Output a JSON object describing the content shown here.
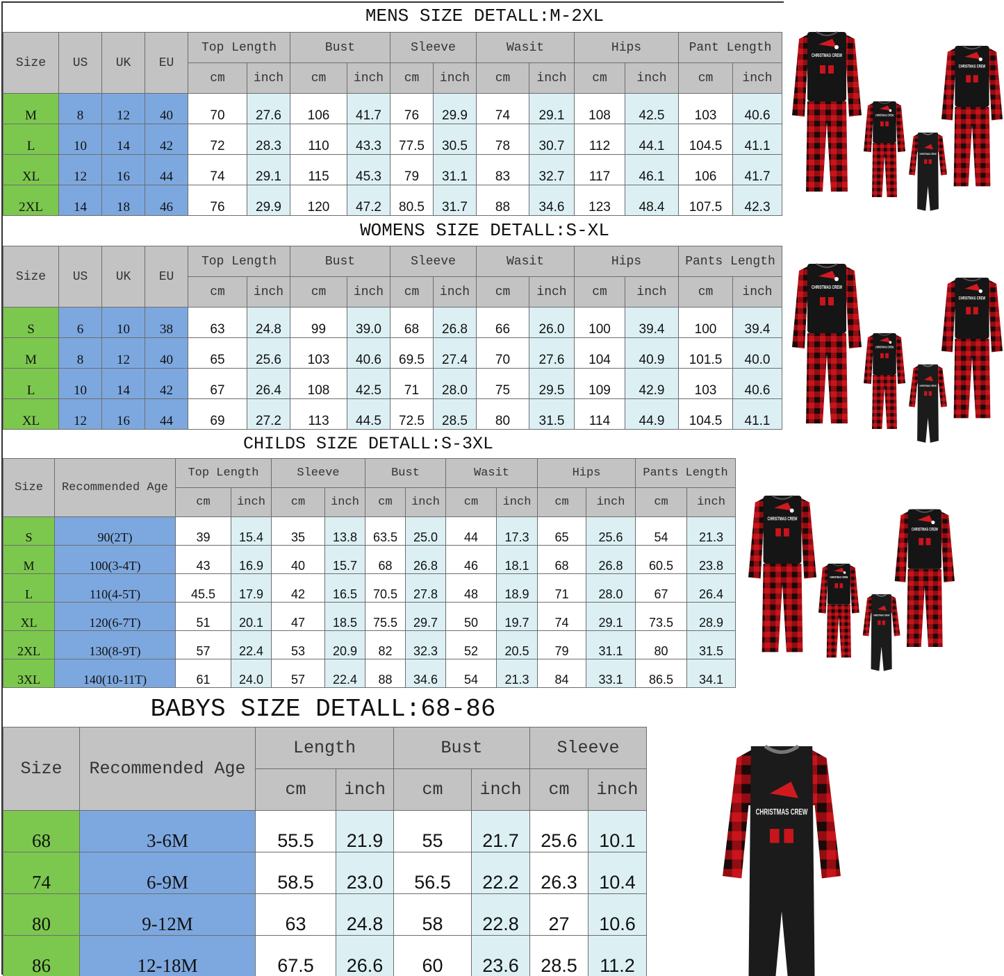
{
  "tables": [
    {
      "title": "MENS SIZE DETALL:M-2XL",
      "fixed_headers": [
        "Size",
        "US",
        "UK",
        "EU"
      ],
      "groups": [
        "Top Length",
        "Bust",
        "Sleeve",
        "Wasit",
        "Hips",
        "Pant Length"
      ],
      "units": [
        "cm",
        "inch"
      ],
      "rows": [
        [
          "M",
          "8",
          "12",
          "40",
          "70",
          "27.6",
          "106",
          "41.7",
          "76",
          "29.9",
          "74",
          "29.1",
          "108",
          "42.5",
          "103",
          "40.6"
        ],
        [
          "L",
          "10",
          "14",
          "42",
          "72",
          "28.3",
          "110",
          "43.3",
          "77.5",
          "30.5",
          "78",
          "30.7",
          "112",
          "44.1",
          "104.5",
          "41.1"
        ],
        [
          "XL",
          "12",
          "16",
          "44",
          "74",
          "29.1",
          "115",
          "45.3",
          "79",
          "31.1",
          "83",
          "32.7",
          "117",
          "46.1",
          "106",
          "41.7"
        ],
        [
          "2XL",
          "14",
          "18",
          "46",
          "76",
          "29.9",
          "120",
          "47.2",
          "80.5",
          "31.7",
          "88",
          "34.6",
          "123",
          "48.4",
          "107.5",
          "42.3"
        ]
      ]
    },
    {
      "title": "WOMENS SIZE DETALL:S-XL",
      "fixed_headers": [
        "Size",
        "US",
        "UK",
        "EU"
      ],
      "groups": [
        "Top Length",
        "Bust",
        "Sleeve",
        "Wasit",
        "Hips",
        "Pants Length"
      ],
      "units": [
        "cm",
        "inch"
      ],
      "rows": [
        [
          "S",
          "6",
          "10",
          "38",
          "63",
          "24.8",
          "99",
          "39.0",
          "68",
          "26.8",
          "66",
          "26.0",
          "100",
          "39.4",
          "100",
          "39.4"
        ],
        [
          "M",
          "8",
          "12",
          "40",
          "65",
          "25.6",
          "103",
          "40.6",
          "69.5",
          "27.4",
          "70",
          "27.6",
          "104",
          "40.9",
          "101.5",
          "40.0"
        ],
        [
          "L",
          "10",
          "14",
          "42",
          "67",
          "26.4",
          "108",
          "42.5",
          "71",
          "28.0",
          "75",
          "29.5",
          "109",
          "42.9",
          "103",
          "40.6"
        ],
        [
          "XL",
          "12",
          "16",
          "44",
          "69",
          "27.2",
          "113",
          "44.5",
          "72.5",
          "28.5",
          "80",
          "31.5",
          "114",
          "44.9",
          "104.5",
          "41.1"
        ]
      ]
    },
    {
      "title": "CHILDS SIZE DETALL:S-3XL",
      "fixed_headers": [
        "Size",
        "Recommended Age"
      ],
      "groups": [
        "Top Length",
        "Sleeve",
        "Bust",
        "Wasit",
        "Hips",
        "Pants Length"
      ],
      "units": [
        "cm",
        "inch"
      ],
      "rows": [
        [
          "S",
          "90(2T)",
          "39",
          "15.4",
          "35",
          "13.8",
          "63.5",
          "25.0",
          "44",
          "17.3",
          "65",
          "25.6",
          "54",
          "21.3"
        ],
        [
          "M",
          "100(3-4T)",
          "43",
          "16.9",
          "40",
          "15.7",
          "68",
          "26.8",
          "46",
          "18.1",
          "68",
          "26.8",
          "60.5",
          "23.8"
        ],
        [
          "L",
          "110(4-5T)",
          "45.5",
          "17.9",
          "42",
          "16.5",
          "70.5",
          "27.8",
          "48",
          "18.9",
          "71",
          "28.0",
          "67",
          "26.4"
        ],
        [
          "XL",
          "120(6-7T)",
          "51",
          "20.1",
          "47",
          "18.5",
          "75.5",
          "29.7",
          "50",
          "19.7",
          "74",
          "29.1",
          "73.5",
          "28.9"
        ],
        [
          "2XL",
          "130(8-9T)",
          "57",
          "22.4",
          "53",
          "20.9",
          "82",
          "32.3",
          "52",
          "20.5",
          "79",
          "31.1",
          "80",
          "31.5"
        ],
        [
          "3XL",
          "140(10-11T)",
          "61",
          "24.0",
          "57",
          "22.4",
          "88",
          "34.6",
          "54",
          "21.3",
          "84",
          "33.1",
          "86.5",
          "34.1"
        ]
      ]
    },
    {
      "title": "BABYS SIZE DETALL:68-86",
      "fixed_headers": [
        "Size",
        "Recommended Age"
      ],
      "groups": [
        "Length",
        "Bust",
        "Sleeve"
      ],
      "units": [
        "cm",
        "inch"
      ],
      "rows": [
        [
          "68",
          "3-6M",
          "55.5",
          "21.9",
          "55",
          "21.7",
          "25.6",
          "10.1"
        ],
        [
          "74",
          "6-9M",
          "58.5",
          "23.0",
          "56.5",
          "22.2",
          "26.3",
          "10.4"
        ],
        [
          "80",
          "9-12M",
          "63",
          "24.8",
          "58",
          "22.8",
          "27",
          "10.6"
        ],
        [
          "86",
          "12-18M",
          "67.5",
          "26.6",
          "60",
          "23.6",
          "28.5",
          "11.2"
        ]
      ]
    }
  ],
  "product_images": {
    "print_text": "CHRISTMAS CREW",
    "colors": {
      "top": "#151515",
      "plaid_red": "#c8141c",
      "plaid_dark": "#1a0a0a",
      "size_col": "#7cc84e",
      "fixed_col": "#7da8df",
      "inch_col": "#dcf0f4",
      "header": "#c3c3c3"
    }
  }
}
